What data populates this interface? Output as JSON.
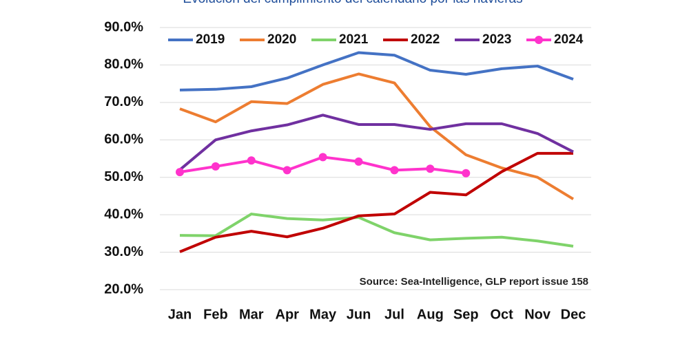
{
  "chart_data": {
    "type": "line",
    "title": "Evolución del cumplimiento del calendario por las navieras",
    "annotation": "Source: Sea-Intelligence, GLP report issue 158",
    "categories": [
      "Jan",
      "Feb",
      "Mar",
      "Apr",
      "May",
      "Jun",
      "Jul",
      "Aug",
      "Sep",
      "Oct",
      "Nov",
      "Dec"
    ],
    "series": [
      {
        "name": "2019",
        "color": "#4472c4",
        "values": [
          73.3,
          73.5,
          74.2,
          76.5,
          80.0,
          83.3,
          82.6,
          78.6,
          77.5,
          79.0,
          79.7,
          76.2
        ]
      },
      {
        "name": "2020",
        "color": "#ed7d31",
        "values": [
          68.3,
          64.8,
          70.2,
          69.7,
          74.8,
          77.6,
          75.2,
          63.5,
          56.0,
          52.5,
          50.0,
          44.2
        ]
      },
      {
        "name": "2021",
        "color": "#7fd36a",
        "values": [
          34.5,
          34.4,
          40.2,
          39.0,
          38.6,
          39.3,
          35.2,
          33.3,
          33.7,
          34.0,
          33.0,
          31.6
        ]
      },
      {
        "name": "2022",
        "color": "#c00000",
        "values": [
          30.1,
          34.0,
          35.6,
          34.1,
          36.4,
          39.7,
          40.2,
          46.0,
          45.3,
          51.5,
          56.4,
          56.4
        ]
      },
      {
        "name": "2023",
        "color": "#7030a0",
        "values": [
          52.0,
          60.0,
          62.4,
          64.0,
          66.6,
          64.1,
          64.1,
          62.8,
          64.3,
          64.3,
          61.7,
          56.8
        ]
      },
      {
        "name": "2024",
        "color": "#ff33cc",
        "markers": true,
        "values": [
          51.4,
          52.9,
          54.5,
          51.9,
          55.4,
          54.2,
          51.9,
          52.3,
          51.1,
          null,
          null,
          null
        ]
      }
    ],
    "ylim": [
      20,
      90
    ],
    "yticks": [
      {
        "value": 20,
        "label": "20.0%"
      },
      {
        "value": 30,
        "label": "30.0%"
      },
      {
        "value": 40,
        "label": "40.0%"
      },
      {
        "value": 50,
        "label": "50.0%"
      },
      {
        "value": 60,
        "label": "60.0%"
      },
      {
        "value": 70,
        "label": "70.0%"
      },
      {
        "value": 80,
        "label": "80.0%"
      },
      {
        "value": 90,
        "label": "90.0%"
      }
    ],
    "grid": true,
    "legend": "top"
  }
}
